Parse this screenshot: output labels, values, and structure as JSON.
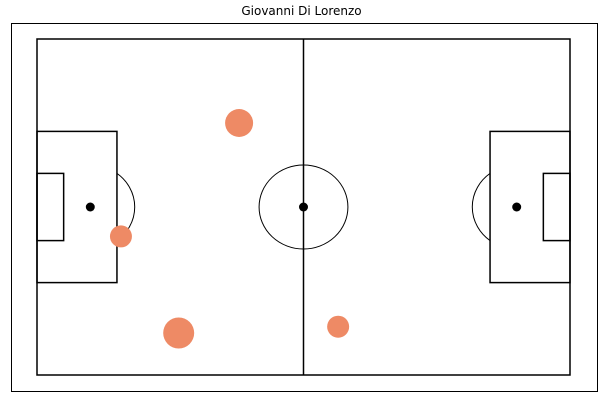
{
  "chart_data": {
    "type": "scatter",
    "title": "Giovanni Di Lorenzo",
    "pitch": {
      "length": 120,
      "width": 80,
      "line_color": "#000000",
      "background": "#ffffff"
    },
    "marker_color": "#ee8a65",
    "points": [
      {
        "x": 45.5,
        "y": 20.0,
        "size": 4
      },
      {
        "x": 18.9,
        "y": 47.0,
        "size": 2
      },
      {
        "x": 31.9,
        "y": 70.0,
        "size": 5
      },
      {
        "x": 67.8,
        "y": 68.5,
        "size": 2
      }
    ]
  }
}
